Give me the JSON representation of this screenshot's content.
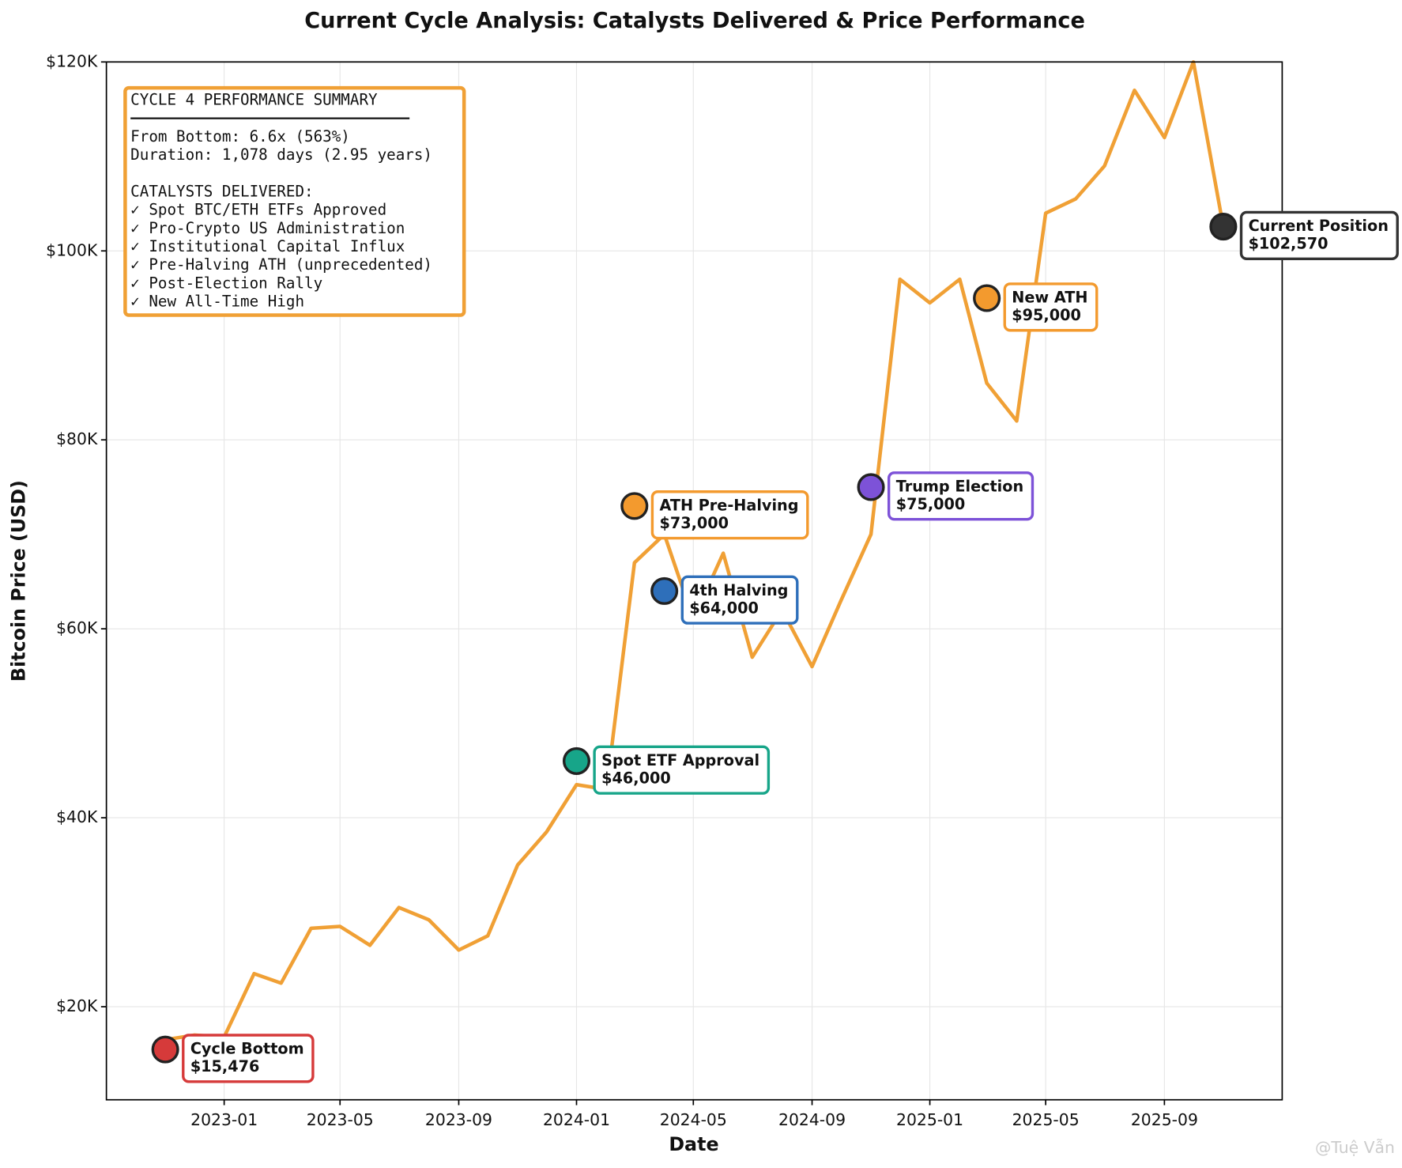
{
  "chart_data": {
    "type": "line",
    "title": "Current Cycle Analysis: Catalysts Delivered & Price Performance",
    "x_label": "Date",
    "y_label": "Bitcoin Price (USD)",
    "x": [
      "2022-11",
      "2022-12",
      "2023-01",
      "2023-02",
      "2023-03",
      "2023-04",
      "2023-05",
      "2023-06",
      "2023-07",
      "2023-08",
      "2023-09",
      "2023-10",
      "2023-11",
      "2023-12",
      "2024-01",
      "2024-02",
      "2024-03",
      "2024-04",
      "2024-05",
      "2024-06",
      "2024-07",
      "2024-08",
      "2024-09",
      "2024-10",
      "2024-11",
      "2024-12",
      "2025-01",
      "2025-02",
      "2025-03",
      "2025-04",
      "2025-05",
      "2025-06",
      "2025-07",
      "2025-08",
      "2025-09",
      "2025-10",
      "2025-11"
    ],
    "series": [
      {
        "color": "#f0a035",
        "values": [
          16500,
          17000,
          16800,
          23500,
          22500,
          28300,
          28500,
          26500,
          30500,
          29200,
          26000,
          27500,
          35000,
          38500,
          43500,
          43000,
          67000,
          70000,
          61000,
          68000,
          57000,
          62000,
          56000,
          63000,
          70000,
          97000,
          94500,
          97000,
          86000,
          82000,
          104000,
          105500,
          109000,
          117000,
          112000,
          120000,
          102570
        ]
      }
    ],
    "xlim": [
      "2022-09",
      "2026-01"
    ],
    "xticks": [
      "2023-01",
      "2023-05",
      "2023-09",
      "2024-01",
      "2024-05",
      "2024-09",
      "2025-01",
      "2025-05",
      "2025-09"
    ],
    "ylim": [
      10150,
      120000
    ],
    "yticks": [
      {
        "value": 20000,
        "label": "$20K"
      },
      {
        "value": 40000,
        "label": "$40K"
      },
      {
        "value": 60000,
        "label": "$60K"
      },
      {
        "value": 80000,
        "label": "$80K"
      },
      {
        "value": 100000,
        "label": "$100K"
      },
      {
        "value": 120000,
        "label": "$120K"
      }
    ],
    "grid": true,
    "annotations": [
      {
        "label": "Cycle Bottom",
        "x": "2022-11",
        "value": 15476,
        "value_label": "$15,476",
        "color": "#d63a3a"
      },
      {
        "label": "Spot ETF Approval",
        "x": "2024-01",
        "value": 46000,
        "value_label": "$46,000",
        "color": "#17a589"
      },
      {
        "label": "ATH Pre-Halving",
        "x": "2024-03",
        "value": 73000,
        "value_label": "$73,000",
        "color": "#f39a2e"
      },
      {
        "label": "4th Halving",
        "x": "2024-04",
        "value": 64000,
        "value_label": "$64,000",
        "color": "#2e6fba"
      },
      {
        "label": "Trump Election",
        "x": "2024-11",
        "value": 75000,
        "value_label": "$75,000",
        "color": "#7d52d8"
      },
      {
        "label": "New ATH",
        "x": "2025-03",
        "value": 95000,
        "value_label": "$95,000",
        "color": "#f39a2e"
      },
      {
        "label": "Current Position",
        "x": "2025-11",
        "value": 102570,
        "value_label": "$102,570",
        "color": "#333333"
      }
    ],
    "summary": {
      "title": "CYCLE 4 PERFORMANCE SUMMARY",
      "stats": [
        "From Bottom: 6.6x (563%)",
        "Duration: 1,078 days (2.95 years)"
      ],
      "catalysts_heading": "CATALYSTS DELIVERED:",
      "catalysts": [
        "✓ Spot BTC/ETH ETFs Approved",
        "✓ Pro-Crypto US Administration",
        "✓ Institutional Capital Influx",
        "✓ Pre-Halving ATH (unprecedented)",
        "✓ Post-Election Rally",
        "✓ New All-Time High"
      ],
      "color": "#f0a035"
    },
    "watermark": "@Tuệ Vẫn"
  }
}
